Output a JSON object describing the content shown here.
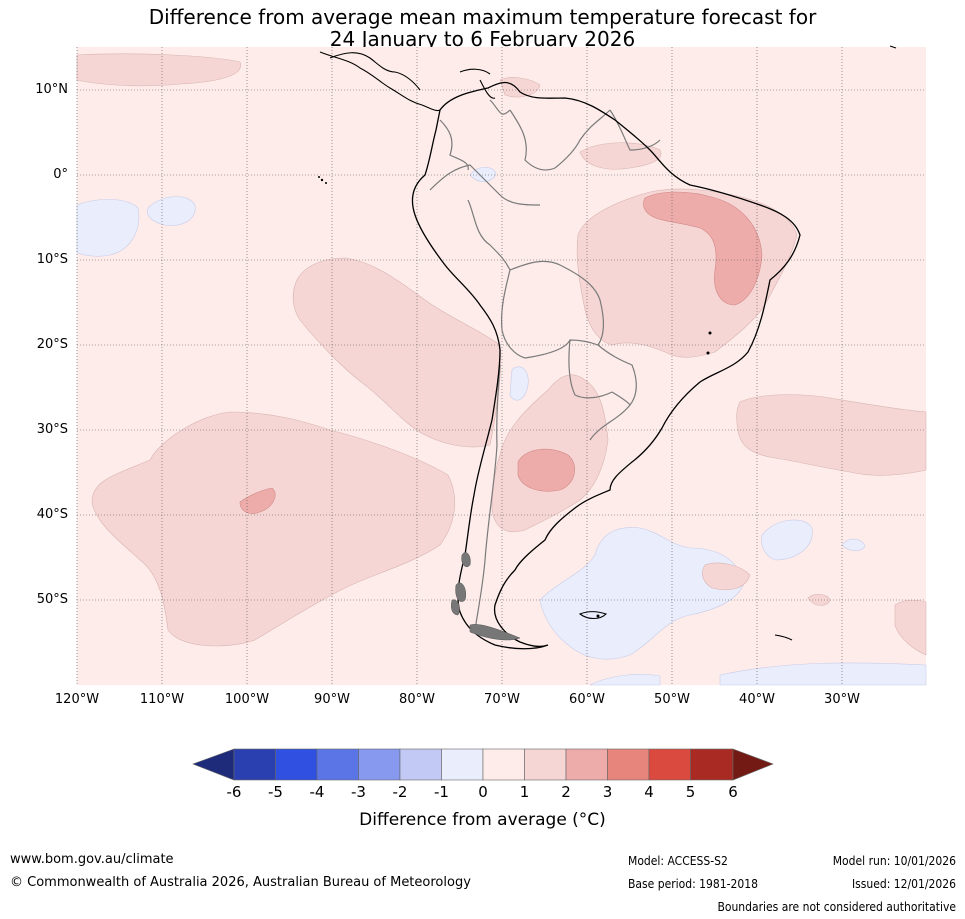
{
  "title_line1": "Difference from average mean maximum temperature forecast for",
  "title_line2": "24 January to 6 February 2026",
  "lat_labels": [
    "10°N",
    "0°",
    "10°S",
    "20°S",
    "30°S",
    "40°S",
    "50°S"
  ],
  "lon_labels": [
    "120°W",
    "110°W",
    "100°W",
    "90°W",
    "80°W",
    "70°W",
    "60°W",
    "50°W",
    "40°W",
    "30°W"
  ],
  "colorbar": {
    "ticks": [
      "-6",
      "-5",
      "-4",
      "-3",
      "-2",
      "-1",
      "0",
      "1",
      "2",
      "3",
      "4",
      "5",
      "6"
    ],
    "colors": [
      "#1e2b7a",
      "#2b40b0",
      "#2f50e0",
      "#5b74e6",
      "#8798ef",
      "#c2c9f5",
      "#e9edfc",
      "#fdecea",
      "#f6d6d4",
      "#edabaa",
      "#e7847c",
      "#db4a3f",
      "#a82a22",
      "#741a14"
    ],
    "label": "Difference from average (°C)"
  },
  "footer": {
    "url": "www.bom.gov.au/climate",
    "copyright": "© Commonwealth of Australia 2026, Australian Bureau of Meteorology",
    "model": "Model: ACCESS-S2",
    "base_period": "Base period: 1981-2018",
    "model_run": "Model run: 10/01/2026",
    "issued": "Issued: 12/01/2026",
    "disclaimer": "Boundaries are not considered authoritative"
  }
}
